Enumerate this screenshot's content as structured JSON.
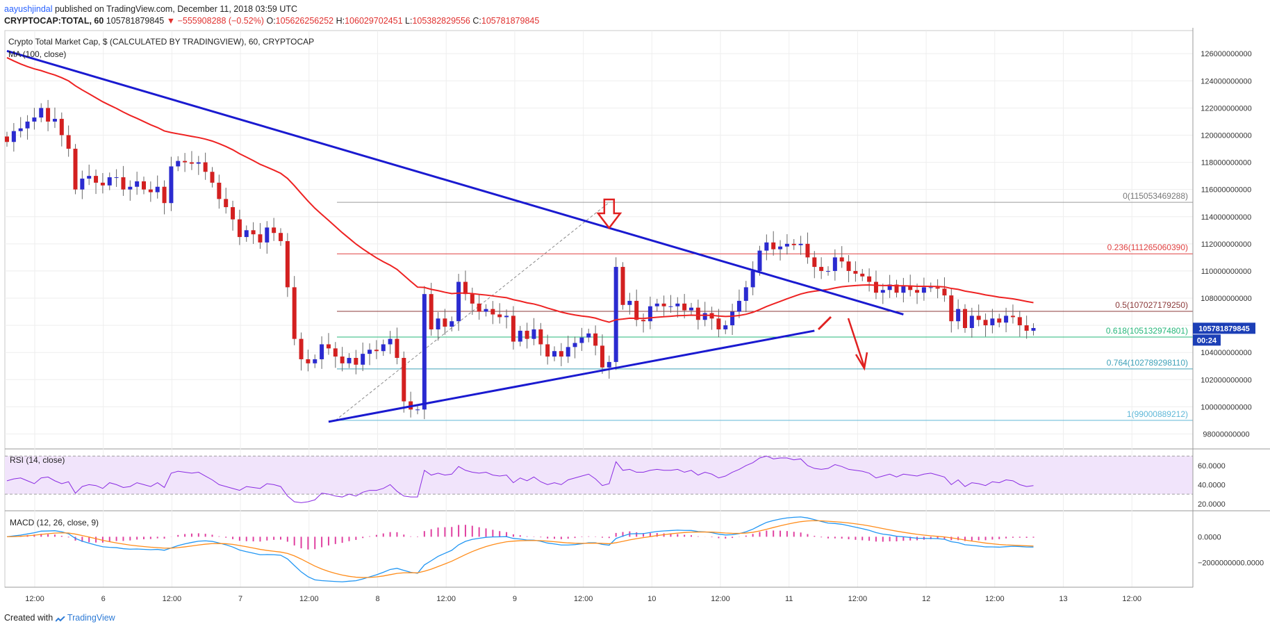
{
  "header": {
    "user": "aayushjindal",
    "published": "published on TradingView.com, December 11, 2018 03:59 UTC",
    "symbol": "CRYPTOCAP:TOTAL, 60",
    "last": "105781879845",
    "change": "▼ −555908288 (−0.52%)",
    "o_label": "O:",
    "o": "105626256252",
    "h_label": "H:",
    "h": "106029702451",
    "l_label": "L:",
    "l": "105382829556",
    "c_label": "C:",
    "c": "105781879845"
  },
  "chart_title": "Crypto Total Market Cap, $ (CALCULATED BY TRADINGVIEW), 60, CRYPTOCAP",
  "ma_label": "MA (100, close)",
  "price_badge": "105781879845",
  "countdown_badge": "00:24",
  "footer": {
    "created": "Created with",
    "brand": "TradingView"
  },
  "colors": {
    "up": "#2b2bd0",
    "down": "#d32020",
    "ma": "#ee2222",
    "trend": "#1a1ad0",
    "fib_red": "#e04040",
    "fib_brown": "#8b3a3a",
    "fib_green": "#26b77a",
    "fib_teal": "#3fa1b8",
    "fib_cyan": "#5fb8d8",
    "rsi_bg": "#f1e4fb",
    "rsi_line": "#8a2be2",
    "macd_line": "#2196f3",
    "signal_line": "#ff8c1a",
    "hist": "#e040a0",
    "badge": "#1c3fb6"
  },
  "chart_data": [
    {
      "type": "candlestick",
      "title": "Crypto Total Market Cap, $ (CALCULATED BY TRADINGVIEW), 60, CRYPTOCAP",
      "x_ticks": [
        "12:00",
        "6",
        "12:00",
        "7",
        "12:00",
        "8",
        "12:00",
        "9",
        "12:00",
        "10",
        "12:00",
        "11",
        "12:00",
        "12",
        "12:00",
        "13",
        "12:00"
      ],
      "y_ticks": [
        98000000000,
        100000000000,
        102000000000,
        104000000000,
        106000000000,
        108000000000,
        110000000000,
        112000000000,
        114000000000,
        116000000000,
        118000000000,
        120000000000,
        122000000000,
        124000000000,
        126000000000
      ],
      "ylim": [
        97000000000,
        127700000000
      ],
      "x_index_range": [
        0,
        174
      ],
      "ohlc_close": [
        119.5,
        120.3,
        120.5,
        121.0,
        121.3,
        122.0,
        121.0,
        121.2,
        120.0,
        119.0,
        116.0,
        116.8,
        117.0,
        116.5,
        116.3,
        116.9,
        116.9,
        116.0,
        116.2,
        116.6,
        116.0,
        115.8,
        116.2,
        115.0,
        117.7,
        118.1,
        118.0,
        117.9,
        118.0,
        117.3,
        116.5,
        115.3,
        114.7,
        113.8,
        112.5,
        113.0,
        112.7,
        112.1,
        113.2,
        112.8,
        112.2,
        108.8,
        105.0,
        103.5,
        103.2,
        103.5,
        104.6,
        104.3,
        103.7,
        103.2,
        103.6,
        103.1,
        103.9,
        104.2,
        104.1,
        104.6,
        105.0,
        103.6,
        100.4,
        99.8,
        99.8,
        108.3,
        105.7,
        106.5,
        105.9,
        106.3,
        109.2,
        108.3,
        107.6,
        107.0,
        107.2,
        106.8,
        106.6,
        106.7,
        104.8,
        105.6,
        105.0,
        105.7,
        104.6,
        103.7,
        104.1,
        103.7,
        104.4,
        104.7,
        105.1,
        105.4,
        104.5,
        102.9,
        103.3,
        110.3,
        107.5,
        107.8,
        106.4,
        106.3,
        107.4,
        107.6,
        107.4,
        107.4,
        107.6,
        107.1,
        107.3,
        106.4,
        106.9,
        106.5,
        105.7,
        106.0,
        107.0,
        107.8,
        108.8,
        110.0,
        111.5,
        112.1,
        111.6,
        111.8,
        112.0,
        111.9,
        112.0,
        111.0,
        110.3,
        110.0,
        110.0,
        111.0,
        110.7,
        110.0,
        109.8,
        109.6,
        109.2,
        108.4,
        108.6,
        109.0,
        108.4,
        108.9,
        108.6,
        108.4,
        108.8,
        108.8,
        108.7,
        108.2,
        106.3,
        107.2,
        105.8,
        106.7,
        106.4,
        106.0,
        106.5,
        106.2,
        106.7,
        106.6,
        106.0,
        105.6,
        105.8
      ],
      "fibonacci": [
        {
          "ratio": "0",
          "value": 115053469288,
          "label": "0(115053469288)"
        },
        {
          "ratio": "0.236",
          "value": 111265060390,
          "label": "0.236(111265060390)"
        },
        {
          "ratio": "0.5",
          "value": 107027179250,
          "label": "0.5(107027179250)"
        },
        {
          "ratio": "0.618",
          "value": 105132974801,
          "label": "0.618(105132974801)"
        },
        {
          "ratio": "0.764",
          "value": 102789298110,
          "label": "0.764(102789298110)"
        },
        {
          "ratio": "1",
          "value": 99000889212,
          "label": "1(99000889212)"
        }
      ],
      "trendlines": [
        {
          "name": "resistance",
          "from": [
            0,
            126200000000
          ],
          "to": [
            131,
            106800000000
          ]
        },
        {
          "name": "support",
          "from": [
            47,
            98900000000
          ],
          "to": [
            118,
            105600000000
          ]
        }
      ]
    },
    {
      "type": "line",
      "title": "RSI (14, close)",
      "y_ticks": [
        20,
        40,
        60
      ],
      "ylim": [
        14,
        76
      ],
      "band": [
        30,
        70
      ],
      "values": [
        44,
        46,
        47,
        44,
        41,
        47,
        48,
        44,
        41,
        43,
        31,
        38,
        40,
        39,
        36,
        42,
        40,
        37,
        38,
        42,
        40,
        38,
        42,
        37,
        52,
        54,
        53,
        52,
        53,
        49,
        45,
        40,
        38,
        36,
        34,
        38,
        37,
        36,
        41,
        40,
        38,
        28,
        22,
        21,
        22,
        24,
        31,
        30,
        28,
        27,
        30,
        28,
        32,
        34,
        34,
        36,
        40,
        33,
        28,
        27,
        27,
        55,
        50,
        52,
        50,
        51,
        59,
        55,
        53,
        52,
        53,
        50,
        49,
        50,
        42,
        47,
        44,
        48,
        43,
        40,
        42,
        40,
        45,
        47,
        49,
        51,
        46,
        39,
        41,
        64,
        55,
        56,
        53,
        53,
        55,
        56,
        55,
        55,
        56,
        53,
        55,
        50,
        53,
        51,
        47,
        49,
        53,
        56,
        60,
        63,
        68,
        70,
        67,
        68,
        68,
        66,
        67,
        60,
        57,
        56,
        57,
        61,
        59,
        56,
        55,
        54,
        52,
        47,
        49,
        51,
        48,
        51,
        50,
        49,
        51,
        52,
        50,
        48,
        40,
        45,
        38,
        42,
        41,
        39,
        43,
        42,
        45,
        44,
        40,
        38,
        39
      ]
    },
    {
      "type": "line",
      "title": "MACD (12, 26, close, 9)",
      "y_ticks": [
        0.0,
        -2000000000.0
      ],
      "tick_labels": [
        "0.0000",
        "−2000000000.0000"
      ],
      "ylim": [
        -3900000000,
        1900000000
      ]
    }
  ]
}
